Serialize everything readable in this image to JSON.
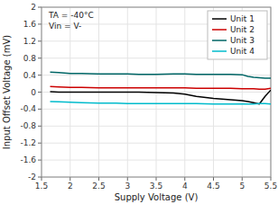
{
  "chart_data": {
    "type": "line",
    "xlabel": "Supply Voltage (V)",
    "ylabel": "Input Offset Voltage (mV)",
    "annotation": "TA = -40°C\nVin = V-",
    "x": [
      1.65,
      1.8,
      2.0,
      2.2,
      2.5,
      2.8,
      3.0,
      3.2,
      3.5,
      3.8,
      4.0,
      4.2,
      4.5,
      4.8,
      5.0,
      5.1,
      5.2,
      5.3,
      5.4,
      5.5
    ],
    "series": [
      {
        "name": "Unit 1",
        "color": "#000000",
        "values": [
          0.01,
          0.0,
          0.0,
          0.0,
          0.0,
          0.0,
          0.0,
          0.0,
          -0.01,
          -0.02,
          -0.05,
          -0.1,
          -0.15,
          -0.18,
          -0.2,
          -0.22,
          -0.25,
          -0.28,
          -0.1,
          0.05
        ]
      },
      {
        "name": "Unit 2",
        "color": "#cc0000",
        "values": [
          0.13,
          0.12,
          0.11,
          0.11,
          0.1,
          0.1,
          0.1,
          0.1,
          0.1,
          0.1,
          0.1,
          0.09,
          0.09,
          0.09,
          0.08,
          0.08,
          0.08,
          0.07,
          0.07,
          0.09
        ]
      },
      {
        "name": "Unit 3",
        "color": "#006666",
        "values": [
          0.47,
          0.46,
          0.44,
          0.44,
          0.43,
          0.43,
          0.43,
          0.42,
          0.42,
          0.43,
          0.43,
          0.42,
          0.42,
          0.42,
          0.41,
          0.37,
          0.35,
          0.34,
          0.33,
          0.33
        ]
      },
      {
        "name": "Unit 4",
        "color": "#00bbcc",
        "values": [
          -0.22,
          -0.23,
          -0.24,
          -0.25,
          -0.26,
          -0.26,
          -0.27,
          -0.27,
          -0.27,
          -0.27,
          -0.27,
          -0.27,
          -0.28,
          -0.28,
          -0.28,
          -0.28,
          -0.28,
          -0.27,
          -0.27,
          -0.28
        ]
      }
    ],
    "xlim": [
      1.5,
      5.5
    ],
    "ylim": [
      -2,
      2
    ],
    "xticks": [
      1.5,
      2.0,
      2.5,
      3.0,
      3.5,
      4.0,
      4.5,
      5.0,
      5.5
    ],
    "yticks": [
      -2,
      -1.6,
      -1.2,
      -0.8,
      -0.4,
      0,
      0.4,
      0.8,
      1.2,
      1.6,
      2
    ],
    "grid": true,
    "legend": "upper right"
  }
}
